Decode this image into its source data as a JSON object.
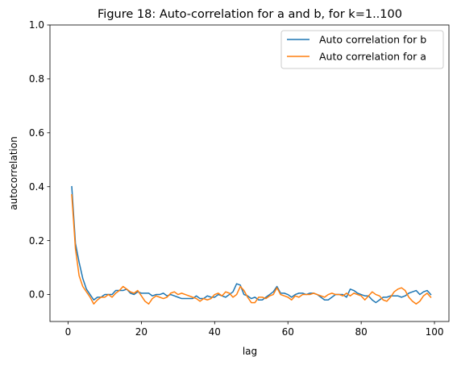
{
  "chart_data": {
    "type": "line",
    "title": "Figure 18: Auto-correlation for a and b, for k=1..100",
    "xlabel": "lag",
    "ylabel": "autocorrelation",
    "xlim": [
      -4.95,
      103.95
    ],
    "ylim": [
      -0.1,
      1.0
    ],
    "xticks": [
      0,
      20,
      40,
      60,
      80,
      100
    ],
    "yticks": [
      0.0,
      0.2,
      0.4,
      0.6,
      0.8,
      1.0
    ],
    "xtick_labels": [
      "0",
      "20",
      "40",
      "60",
      "80",
      "100"
    ],
    "ytick_labels": [
      "0.0",
      "0.2",
      "0.4",
      "0.6",
      "0.8",
      "1.0"
    ],
    "grid": false,
    "legend_position": "top-right",
    "series": [
      {
        "name": "Auto correlation for b",
        "color": "#1f77b4",
        "x": [
          1,
          2,
          3,
          4,
          5,
          6,
          7,
          8,
          9,
          10,
          11,
          12,
          13,
          14,
          15,
          16,
          17,
          18,
          19,
          20,
          21,
          22,
          23,
          24,
          25,
          26,
          27,
          28,
          29,
          30,
          31,
          32,
          33,
          34,
          35,
          36,
          37,
          38,
          39,
          40,
          41,
          42,
          43,
          44,
          45,
          46,
          47,
          48,
          49,
          50,
          51,
          52,
          53,
          54,
          55,
          56,
          57,
          58,
          59,
          60,
          61,
          62,
          63,
          64,
          65,
          66,
          67,
          68,
          69,
          70,
          71,
          72,
          73,
          74,
          75,
          76,
          77,
          78,
          79,
          80,
          81,
          82,
          83,
          84,
          85,
          86,
          87,
          88,
          89,
          90,
          91,
          92,
          93,
          94,
          95,
          96,
          97,
          98,
          99
        ],
        "y": [
          0.4,
          0.19,
          0.12,
          0.06,
          0.02,
          0.0,
          -0.02,
          -0.01,
          -0.01,
          0.0,
          0.0,
          0.0,
          0.015,
          0.015,
          0.015,
          0.02,
          0.005,
          0.0,
          0.01,
          0.005,
          0.005,
          0.005,
          -0.005,
          0.0,
          0.0,
          0.005,
          -0.005,
          0.0,
          -0.005,
          -0.01,
          -0.015,
          -0.015,
          -0.015,
          -0.015,
          -0.005,
          -0.015,
          -0.015,
          -0.005,
          -0.01,
          -0.01,
          0.0,
          -0.005,
          -0.01,
          0.0,
          0.01,
          0.04,
          0.035,
          0.0,
          -0.005,
          -0.015,
          -0.01,
          -0.02,
          -0.02,
          -0.01,
          0.0,
          0.01,
          0.03,
          0.005,
          0.005,
          0.0,
          -0.01,
          0.0,
          0.005,
          0.005,
          0.0,
          0.005,
          0.005,
          0.0,
          -0.01,
          -0.02,
          -0.02,
          -0.01,
          0.0,
          0.0,
          0.0,
          -0.01,
          0.02,
          0.015,
          0.005,
          0.0,
          -0.005,
          -0.005,
          -0.02,
          -0.03,
          -0.02,
          -0.01,
          -0.01,
          -0.005,
          -0.005,
          -0.005,
          -0.01,
          -0.005,
          0.005,
          0.01,
          0.015,
          0.0,
          0.01,
          0.015,
          0.0
        ]
      },
      {
        "name": "Auto correlation for a",
        "color": "#ff7f0e",
        "x": [
          1,
          2,
          3,
          4,
          5,
          6,
          7,
          8,
          9,
          10,
          11,
          12,
          13,
          14,
          15,
          16,
          17,
          18,
          19,
          20,
          21,
          22,
          23,
          24,
          25,
          26,
          27,
          28,
          29,
          30,
          31,
          32,
          33,
          34,
          35,
          36,
          37,
          38,
          39,
          40,
          41,
          42,
          43,
          44,
          45,
          46,
          47,
          48,
          49,
          50,
          51,
          52,
          53,
          54,
          55,
          56,
          57,
          58,
          59,
          60,
          61,
          62,
          63,
          64,
          65,
          66,
          67,
          68,
          69,
          70,
          71,
          72,
          73,
          74,
          75,
          76,
          77,
          78,
          79,
          80,
          81,
          82,
          83,
          84,
          85,
          86,
          87,
          88,
          89,
          90,
          91,
          92,
          93,
          94,
          95,
          96,
          97,
          98,
          99
        ],
        "y": [
          0.37,
          0.17,
          0.07,
          0.03,
          0.01,
          -0.01,
          -0.035,
          -0.02,
          -0.01,
          -0.01,
          0.0,
          -0.01,
          0.005,
          0.015,
          0.03,
          0.02,
          0.01,
          0.005,
          0.015,
          -0.005,
          -0.025,
          -0.035,
          -0.015,
          -0.005,
          -0.01,
          -0.015,
          -0.01,
          0.005,
          0.01,
          0.0,
          0.005,
          0.0,
          -0.005,
          -0.01,
          -0.015,
          -0.025,
          -0.015,
          -0.02,
          -0.015,
          0.0,
          0.005,
          -0.005,
          0.01,
          0.005,
          -0.01,
          0.0,
          0.03,
          0.015,
          -0.01,
          -0.03,
          -0.03,
          -0.01,
          -0.01,
          -0.015,
          -0.005,
          0.0,
          0.025,
          0.0,
          -0.005,
          -0.01,
          -0.02,
          -0.005,
          -0.01,
          0.0,
          0.0,
          0.0,
          0.005,
          0.0,
          -0.005,
          -0.01,
          0.0,
          0.005,
          0.0,
          0.0,
          -0.005,
          0.005,
          -0.005,
          0.005,
          0.0,
          -0.005,
          -0.02,
          -0.005,
          0.01,
          0.0,
          -0.005,
          -0.02,
          -0.025,
          -0.01,
          0.01,
          0.02,
          0.025,
          0.015,
          -0.01,
          -0.025,
          -0.035,
          -0.025,
          -0.005,
          0.005,
          -0.01
        ]
      }
    ]
  }
}
